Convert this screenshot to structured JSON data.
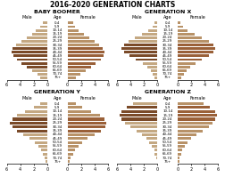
{
  "title": "2016-2020 GENERATION CHARTS",
  "chart_data": [
    {
      "type": "bar",
      "orientation": "horizontal",
      "title": "BABY BOOMER",
      "ylabel": "Age",
      "categories": [
        "75+",
        "70-74",
        "65-69",
        "60-64",
        "55-59",
        "50-54",
        "45-49",
        "40-44",
        "35-39",
        "30-34",
        "25-29",
        "20-24",
        "15-19",
        "10-14",
        "5-9",
        "0-4"
      ],
      "series": [
        {
          "name": "Male",
          "values": [
            1.0,
            1.5,
            2.2,
            3.0,
            3.8,
            4.5,
            5.0,
            5.3,
            5.1,
            4.6,
            3.8,
            3.0,
            2.3,
            1.7,
            1.1,
            0.7
          ],
          "colors": [
            "#c4a882",
            "#c4a882",
            "#c4a882",
            "#7a4a28",
            "#7a4a28",
            "#7a4a28",
            "#7a4a28",
            "#7a4a28",
            "#7a4a28",
            "#c4a882",
            "#c4a882",
            "#c4a882",
            "#c4a882",
            "#c4a882",
            "#c4a882",
            "#c4a882"
          ]
        },
        {
          "name": "Female",
          "values": [
            1.2,
            1.9,
            2.7,
            3.5,
            4.2,
            4.9,
            5.3,
            5.5,
            5.2,
            4.7,
            4.0,
            3.2,
            2.4,
            1.7,
            1.1,
            0.8
          ],
          "colors": [
            "#b89268",
            "#b89268",
            "#b89268",
            "#9a6038",
            "#9a6038",
            "#9a6038",
            "#9a6038",
            "#9a6038",
            "#9a6038",
            "#b89268",
            "#b89268",
            "#b89268",
            "#b89268",
            "#b89268",
            "#b89268",
            "#b89268"
          ]
        }
      ],
      "xlim": [
        0,
        6
      ],
      "xticks": [
        0,
        2,
        4,
        6
      ]
    },
    {
      "type": "bar",
      "orientation": "horizontal",
      "title": "GENERATION X",
      "ylabel": "Age",
      "categories": [
        "75+",
        "70-74",
        "65-69",
        "60-64",
        "55-59",
        "50-54",
        "45-49",
        "40-44",
        "35-39",
        "30-34",
        "25-29",
        "20-24",
        "15-19",
        "10-14",
        "5-9",
        "0-4"
      ],
      "series": [
        {
          "name": "Male",
          "values": [
            0.4,
            0.7,
            1.0,
            1.5,
            2.2,
            3.2,
            4.2,
            5.0,
            5.3,
            5.0,
            4.3,
            3.3,
            2.3,
            1.4,
            0.7,
            0.4
          ],
          "colors": [
            "#c4a882",
            "#c4a882",
            "#c4a882",
            "#c4a882",
            "#c4a882",
            "#7a4a28",
            "#7a4a28",
            "#7a4a28",
            "#7a4a28",
            "#7a4a28",
            "#c4a882",
            "#c4a882",
            "#c4a882",
            "#c4a882",
            "#c4a882",
            "#c4a882"
          ]
        },
        {
          "name": "Female",
          "values": [
            0.5,
            0.9,
            1.3,
            1.8,
            2.6,
            3.6,
            4.6,
            5.3,
            5.6,
            5.3,
            4.6,
            3.6,
            2.5,
            1.5,
            0.8,
            0.4
          ],
          "colors": [
            "#b89268",
            "#b89268",
            "#b89268",
            "#b89268",
            "#b89268",
            "#9a6038",
            "#9a6038",
            "#9a6038",
            "#9a6038",
            "#9a6038",
            "#b89268",
            "#b89268",
            "#b89268",
            "#b89268",
            "#b89268",
            "#b89268"
          ]
        }
      ],
      "xlim": [
        0,
        6
      ],
      "xticks": [
        0,
        2,
        4,
        6
      ]
    },
    {
      "type": "bar",
      "orientation": "horizontal",
      "title": "GENERATION Y",
      "ylabel": "Age",
      "categories": [
        "75+",
        "70-74",
        "65-69",
        "60-64",
        "55-59",
        "50-54",
        "45-49",
        "40-44",
        "35-39",
        "30-34",
        "25-29",
        "20-24",
        "15-19",
        "10-14",
        "5-9",
        "0-4"
      ],
      "series": [
        {
          "name": "Male",
          "values": [
            0.2,
            0.4,
            0.6,
            0.9,
            1.3,
            1.8,
            2.6,
            3.5,
            4.5,
            5.2,
            5.5,
            5.2,
            4.5,
            3.3,
            2.0,
            1.1
          ],
          "colors": [
            "#c4a882",
            "#c4a882",
            "#c4a882",
            "#c4a882",
            "#c4a882",
            "#c4a882",
            "#c4a882",
            "#c4a882",
            "#7a4a28",
            "#7a4a28",
            "#7a4a28",
            "#7a4a28",
            "#c4a882",
            "#c4a882",
            "#c4a882",
            "#c4a882"
          ]
        },
        {
          "name": "Female",
          "values": [
            0.3,
            0.5,
            0.8,
            1.1,
            1.6,
            2.2,
            3.0,
            4.0,
            5.0,
            5.6,
            5.8,
            5.5,
            4.8,
            3.5,
            2.2,
            1.2
          ],
          "colors": [
            "#b89268",
            "#b89268",
            "#b89268",
            "#b89268",
            "#b89268",
            "#b89268",
            "#b89268",
            "#b89268",
            "#9a6038",
            "#9a6038",
            "#9a6038",
            "#9a6038",
            "#b89268",
            "#b89268",
            "#b89268",
            "#b89268"
          ]
        }
      ],
      "xlim": [
        0,
        6
      ],
      "xticks": [
        0,
        2,
        4,
        6
      ]
    },
    {
      "type": "bar",
      "orientation": "horizontal",
      "title": "GENERATION Z",
      "ylabel": "Age",
      "categories": [
        "75+",
        "70-74",
        "65-69",
        "60-64",
        "55-59",
        "50-54",
        "45-49",
        "40-44",
        "35-39",
        "30-34",
        "25-29",
        "20-24",
        "15-19",
        "10-14",
        "5-9",
        "0-4"
      ],
      "series": [
        {
          "name": "Male",
          "values": [
            0.1,
            0.2,
            0.4,
            0.5,
            0.8,
            1.2,
            1.7,
            2.3,
            3.1,
            4.0,
            4.8,
            5.3,
            5.6,
            5.3,
            4.6,
            3.6
          ],
          "colors": [
            "#c4a882",
            "#c4a882",
            "#c4a882",
            "#c4a882",
            "#c4a882",
            "#c4a882",
            "#c4a882",
            "#c4a882",
            "#c4a882",
            "#c4a882",
            "#c4a882",
            "#7a4a28",
            "#7a4a28",
            "#7a4a28",
            "#7a4a28",
            "#c4a882"
          ]
        },
        {
          "name": "Female",
          "values": [
            0.2,
            0.3,
            0.5,
            0.7,
            1.0,
            1.4,
            2.0,
            2.8,
            3.7,
            4.6,
            5.2,
            5.6,
            5.8,
            5.5,
            4.8,
            3.8
          ],
          "colors": [
            "#b89268",
            "#b89268",
            "#b89268",
            "#b89268",
            "#b89268",
            "#b89268",
            "#b89268",
            "#b89268",
            "#b89268",
            "#b89268",
            "#b89268",
            "#9a6038",
            "#9a6038",
            "#9a6038",
            "#9a6038",
            "#b89268"
          ]
        }
      ],
      "xlim": [
        0,
        6
      ],
      "xticks": [
        0,
        2,
        4,
        6
      ]
    }
  ]
}
